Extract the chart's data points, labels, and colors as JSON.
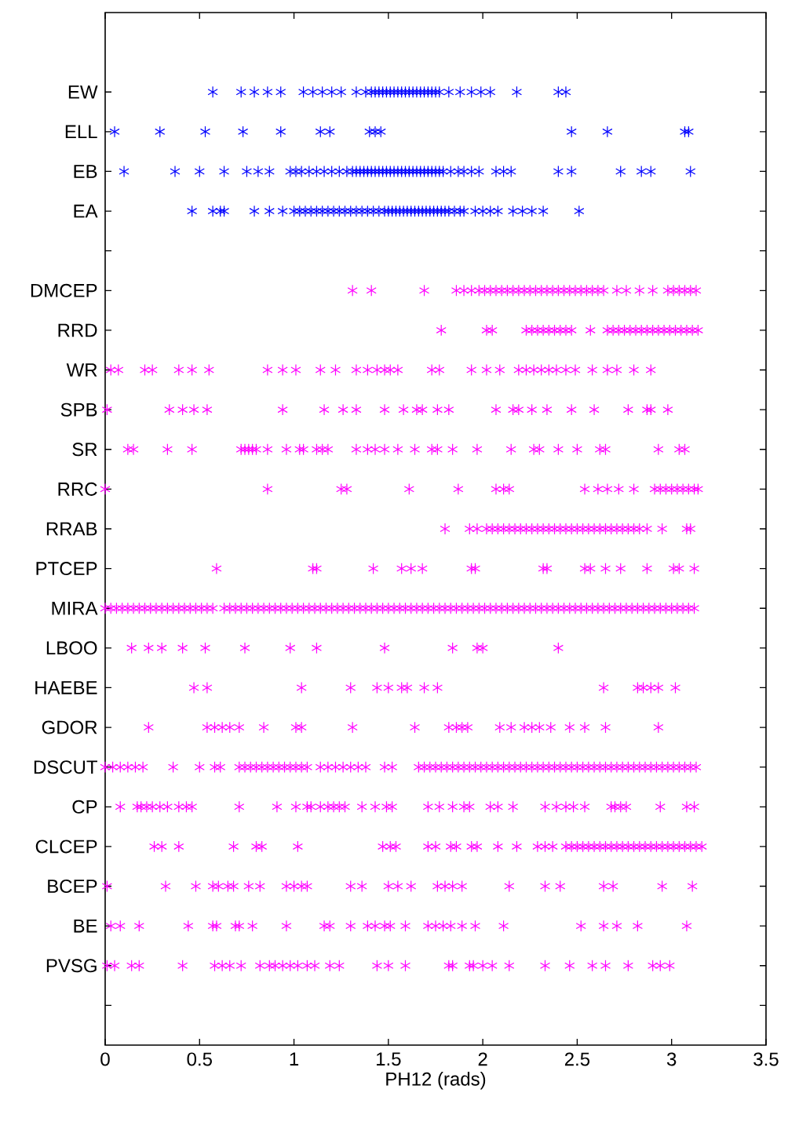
{
  "chart_data": {
    "type": "scatter",
    "orientation": "horizontal",
    "xlabel": "PH12 (rads)",
    "marker": "cross",
    "xlim": [
      0,
      3.5
    ],
    "xticks": [
      0,
      0.5,
      1,
      1.5,
      2,
      2.5,
      3,
      3.5
    ],
    "categories": [
      "EW",
      "ELL",
      "EB",
      "EA",
      null,
      "DMCEP",
      "RRD",
      "WR",
      "SPB",
      "SR",
      "RRC",
      "RRAB",
      "PTCEP",
      "MIRA",
      "LBOO",
      "HAEBE",
      "GDOR",
      "DSCUT",
      "CP",
      "CLCEP",
      "BCEP",
      "BE",
      "PVSG",
      null
    ],
    "series": [
      {
        "color": "#0000ff",
        "values": [
          0.57,
          0.72,
          0.79,
          0.86,
          0.93,
          1.05,
          1.1,
          1.15,
          1.2,
          1.25,
          1.33,
          1.38,
          1.41,
          1.43,
          1.45,
          1.47,
          1.49,
          1.51,
          1.53,
          1.55,
          1.57,
          1.59,
          1.61,
          1.63,
          1.65,
          1.67,
          1.69,
          1.71,
          1.73,
          1.75,
          1.77,
          1.82,
          1.88,
          1.94,
          1.99,
          2.04,
          2.18,
          2.4,
          2.44
        ],
        "x": [
          "EW",
          "EW",
          "EW",
          "EW",
          "EW",
          "EW",
          "EW",
          "EW",
          "EW",
          "EW",
          "EW",
          "EW",
          "EW",
          "EW",
          "EW",
          "EW",
          "EW",
          "EW",
          "EW",
          "EW",
          "EW",
          "EW",
          "EW",
          "EW",
          "EW",
          "EW",
          "EW",
          "EW",
          "EW",
          "EW",
          "EW",
          "EW",
          "EW",
          "EW",
          "EW",
          "EW",
          "EW",
          "EW",
          "EW"
        ]
      },
      {
        "color": "#0000ff",
        "values": [
          0.05,
          0.29,
          0.53,
          0.73,
          0.93,
          1.14,
          1.19,
          1.4,
          1.43,
          1.46,
          2.47,
          2.66,
          3.07,
          3.09
        ],
        "x": [
          "ELL",
          "ELL",
          "ELL",
          "ELL",
          "ELL",
          "ELL",
          "ELL",
          "ELL",
          "ELL",
          "ELL",
          "ELL",
          "ELL",
          "ELL",
          "ELL"
        ]
      },
      {
        "color": "#0000ff",
        "values": [
          0.1,
          0.37,
          0.5,
          0.63,
          0.75,
          0.81,
          0.87,
          0.98,
          1.01,
          1.04,
          1.08,
          1.12,
          1.16,
          1.2,
          1.24,
          1.28,
          1.31,
          1.33,
          1.35,
          1.37,
          1.39,
          1.41,
          1.43,
          1.45,
          1.47,
          1.49,
          1.51,
          1.53,
          1.55,
          1.57,
          1.59,
          1.61,
          1.63,
          1.65,
          1.67,
          1.69,
          1.71,
          1.73,
          1.75,
          1.77,
          1.79,
          1.83,
          1.87,
          1.9,
          1.94,
          1.98,
          2.07,
          2.11,
          2.15,
          2.4,
          2.47,
          2.73,
          2.84,
          2.89,
          3.1
        ],
        "x": [
          "EB",
          "EB",
          "EB",
          "EB",
          "EB",
          "EB",
          "EB",
          "EB",
          "EB",
          "EB",
          "EB",
          "EB",
          "EB",
          "EB",
          "EB",
          "EB",
          "EB",
          "EB",
          "EB",
          "EB",
          "EB",
          "EB",
          "EB",
          "EB",
          "EB",
          "EB",
          "EB",
          "EB",
          "EB",
          "EB",
          "EB",
          "EB",
          "EB",
          "EB",
          "EB",
          "EB",
          "EB",
          "EB",
          "EB",
          "EB",
          "EB",
          "EB",
          "EB",
          "EB",
          "EB",
          "EB",
          "EB",
          "EB",
          "EB",
          "EB",
          "EB",
          "EB",
          "EB",
          "EB",
          "EB"
        ]
      },
      {
        "color": "#0000ff",
        "values": [
          0.46,
          0.57,
          0.61,
          0.63,
          0.79,
          0.87,
          0.94,
          1.0,
          1.03,
          1.06,
          1.09,
          1.12,
          1.15,
          1.18,
          1.21,
          1.24,
          1.27,
          1.3,
          1.33,
          1.36,
          1.39,
          1.42,
          1.45,
          1.48,
          1.5,
          1.52,
          1.54,
          1.56,
          1.58,
          1.6,
          1.62,
          1.64,
          1.66,
          1.68,
          1.7,
          1.72,
          1.74,
          1.76,
          1.78,
          1.8,
          1.82,
          1.85,
          1.88,
          1.9,
          1.96,
          2.0,
          2.04,
          2.08,
          2.16,
          2.21,
          2.26,
          2.32,
          2.51
        ],
        "x": [
          "EA",
          "EA",
          "EA",
          "EA",
          "EA",
          "EA",
          "EA",
          "EA",
          "EA",
          "EA",
          "EA",
          "EA",
          "EA",
          "EA",
          "EA",
          "EA",
          "EA",
          "EA",
          "EA",
          "EA",
          "EA",
          "EA",
          "EA",
          "EA",
          "EA",
          "EA",
          "EA",
          "EA",
          "EA",
          "EA",
          "EA",
          "EA",
          "EA",
          "EA",
          "EA",
          "EA",
          "EA",
          "EA",
          "EA",
          "EA",
          "EA",
          "EA",
          "EA",
          "EA",
          "EA",
          "EA",
          "EA",
          "EA",
          "EA",
          "EA",
          "EA",
          "EA",
          "EA"
        ]
      },
      {
        "color": "#ff00ff",
        "values": [
          1.31,
          1.41,
          1.69,
          1.86,
          1.9,
          1.94,
          1.98,
          2.01,
          2.04,
          2.07,
          2.1,
          2.13,
          2.16,
          2.19,
          2.22,
          2.25,
          2.28,
          2.31,
          2.34,
          2.37,
          2.4,
          2.43,
          2.46,
          2.49,
          2.52,
          2.55,
          2.58,
          2.61,
          2.64,
          2.71,
          2.76,
          2.83,
          2.9,
          2.98,
          3.01,
          3.04,
          3.07,
          3.1,
          3.13
        ],
        "x": [
          "DMCEP",
          "DMCEP",
          "DMCEP",
          "DMCEP",
          "DMCEP",
          "DMCEP",
          "DMCEP",
          "DMCEP",
          "DMCEP",
          "DMCEP",
          "DMCEP",
          "DMCEP",
          "DMCEP",
          "DMCEP",
          "DMCEP",
          "DMCEP",
          "DMCEP",
          "DMCEP",
          "DMCEP",
          "DMCEP",
          "DMCEP",
          "DMCEP",
          "DMCEP",
          "DMCEP",
          "DMCEP",
          "DMCEP",
          "DMCEP",
          "DMCEP",
          "DMCEP",
          "DMCEP",
          "DMCEP",
          "DMCEP",
          "DMCEP",
          "DMCEP",
          "DMCEP",
          "DMCEP",
          "DMCEP",
          "DMCEP",
          "DMCEP"
        ]
      },
      {
        "color": "#ff00ff",
        "values": [
          1.78,
          2.02,
          2.05,
          2.23,
          2.26,
          2.29,
          2.32,
          2.35,
          2.38,
          2.41,
          2.44,
          2.47,
          2.57,
          2.66,
          2.69,
          2.72,
          2.75,
          2.78,
          2.81,
          2.84,
          2.87,
          2.9,
          2.93,
          2.96,
          2.99,
          3.02,
          3.05,
          3.08,
          3.11,
          3.14
        ],
        "x": [
          "RRD",
          "RRD",
          "RRD",
          "RRD",
          "RRD",
          "RRD",
          "RRD",
          "RRD",
          "RRD",
          "RRD",
          "RRD",
          "RRD",
          "RRD",
          "RRD",
          "RRD",
          "RRD",
          "RRD",
          "RRD",
          "RRD",
          "RRD",
          "RRD",
          "RRD",
          "RRD",
          "RRD",
          "RRD",
          "RRD",
          "RRD",
          "RRD",
          "RRD",
          "RRD"
        ]
      },
      {
        "color": "#ff00ff",
        "values": [
          0.03,
          0.07,
          0.21,
          0.25,
          0.39,
          0.46,
          0.55,
          0.86,
          0.94,
          1.01,
          1.14,
          1.22,
          1.33,
          1.39,
          1.44,
          1.48,
          1.51,
          1.55,
          1.73,
          1.77,
          1.94,
          2.02,
          2.09,
          2.19,
          2.23,
          2.27,
          2.31,
          2.35,
          2.39,
          2.44,
          2.49,
          2.58,
          2.66,
          2.71,
          2.8,
          2.89
        ],
        "x": [
          "WR",
          "WR",
          "WR",
          "WR",
          "WR",
          "WR",
          "WR",
          "WR",
          "WR",
          "WR",
          "WR",
          "WR",
          "WR",
          "WR",
          "WR",
          "WR",
          "WR",
          "WR",
          "WR",
          "WR",
          "WR",
          "WR",
          "WR",
          "WR",
          "WR",
          "WR",
          "WR",
          "WR",
          "WR",
          "WR",
          "WR",
          "WR",
          "WR",
          "WR",
          "WR",
          "WR"
        ]
      },
      {
        "color": "#ff00ff",
        "values": [
          0.01,
          0.34,
          0.41,
          0.47,
          0.54,
          0.94,
          1.16,
          1.26,
          1.33,
          1.48,
          1.58,
          1.65,
          1.68,
          1.76,
          1.82,
          2.07,
          2.16,
          2.19,
          2.26,
          2.34,
          2.47,
          2.59,
          2.77,
          2.87,
          2.89,
          2.98
        ],
        "x": [
          "SPB",
          "SPB",
          "SPB",
          "SPB",
          "SPB",
          "SPB",
          "SPB",
          "SPB",
          "SPB",
          "SPB",
          "SPB",
          "SPB",
          "SPB",
          "SPB",
          "SPB",
          "SPB",
          "SPB",
          "SPB",
          "SPB",
          "SPB",
          "SPB",
          "SPB",
          "SPB",
          "SPB",
          "SPB",
          "SPB"
        ]
      },
      {
        "color": "#ff00ff",
        "values": [
          0.12,
          0.15,
          0.33,
          0.46,
          0.72,
          0.74,
          0.76,
          0.78,
          0.8,
          0.86,
          0.96,
          1.03,
          1.05,
          1.12,
          1.15,
          1.18,
          1.33,
          1.39,
          1.43,
          1.48,
          1.55,
          1.64,
          1.73,
          1.76,
          1.84,
          1.97,
          2.15,
          2.27,
          2.3,
          2.4,
          2.5,
          2.62,
          2.65,
          2.93,
          3.04,
          3.07
        ],
        "x": [
          "SR",
          "SR",
          "SR",
          "SR",
          "SR",
          "SR",
          "SR",
          "SR",
          "SR",
          "SR",
          "SR",
          "SR",
          "SR",
          "SR",
          "SR",
          "SR",
          "SR",
          "SR",
          "SR",
          "SR",
          "SR",
          "SR",
          "SR",
          "SR",
          "SR",
          "SR",
          "SR",
          "SR",
          "SR",
          "SR",
          "SR",
          "SR",
          "SR",
          "SR",
          "SR",
          "SR"
        ]
      },
      {
        "color": "#ff00ff",
        "values": [
          0.0,
          0.86,
          1.25,
          1.28,
          1.61,
          1.87,
          2.07,
          2.11,
          2.14,
          2.54,
          2.61,
          2.66,
          2.72,
          2.8,
          2.91,
          2.94,
          2.97,
          3.0,
          3.03,
          3.06,
          3.09,
          3.12,
          3.14
        ],
        "x": [
          "RRC",
          "RRC",
          "RRC",
          "RRC",
          "RRC",
          "RRC",
          "RRC",
          "RRC",
          "RRC",
          "RRC",
          "RRC",
          "RRC",
          "RRC",
          "RRC",
          "RRC",
          "RRC",
          "RRC",
          "RRC",
          "RRC",
          "RRC",
          "RRC",
          "RRC",
          "RRC"
        ]
      },
      {
        "color": "#ff00ff",
        "values": [
          1.8,
          1.93,
          1.97,
          2.02,
          2.05,
          2.08,
          2.11,
          2.14,
          2.17,
          2.2,
          2.23,
          2.26,
          2.29,
          2.32,
          2.35,
          2.38,
          2.41,
          2.44,
          2.47,
          2.5,
          2.53,
          2.56,
          2.59,
          2.62,
          2.65,
          2.68,
          2.71,
          2.74,
          2.77,
          2.8,
          2.83,
          2.87,
          2.95,
          3.08,
          3.1
        ],
        "x": [
          "RRAB",
          "RRAB",
          "RRAB",
          "RRAB",
          "RRAB",
          "RRAB",
          "RRAB",
          "RRAB",
          "RRAB",
          "RRAB",
          "RRAB",
          "RRAB",
          "RRAB",
          "RRAB",
          "RRAB",
          "RRAB",
          "RRAB",
          "RRAB",
          "RRAB",
          "RRAB",
          "RRAB",
          "RRAB",
          "RRAB",
          "RRAB",
          "RRAB",
          "RRAB",
          "RRAB",
          "RRAB",
          "RRAB",
          "RRAB",
          "RRAB",
          "RRAB",
          "RRAB",
          "RRAB",
          "RRAB"
        ]
      },
      {
        "color": "#ff00ff",
        "values": [
          0.59,
          1.1,
          1.12,
          1.42,
          1.57,
          1.62,
          1.68,
          1.94,
          1.96,
          2.32,
          2.34,
          2.54,
          2.57,
          2.65,
          2.73,
          2.87,
          3.01,
          3.04,
          3.12
        ],
        "x": [
          "PTCEP",
          "PTCEP",
          "PTCEP",
          "PTCEP",
          "PTCEP",
          "PTCEP",
          "PTCEP",
          "PTCEP",
          "PTCEP",
          "PTCEP",
          "PTCEP",
          "PTCEP",
          "PTCEP",
          "PTCEP",
          "PTCEP",
          "PTCEP",
          "PTCEP",
          "PTCEP",
          "PTCEP"
        ]
      },
      {
        "color": "#ff00ff",
        "values": [
          0.0,
          0.03,
          0.06,
          0.09,
          0.12,
          0.15,
          0.18,
          0.21,
          0.24,
          0.27,
          0.3,
          0.33,
          0.36,
          0.39,
          0.42,
          0.45,
          0.48,
          0.51,
          0.54,
          0.57,
          0.63,
          0.66,
          0.69,
          0.72,
          0.75,
          0.78,
          0.81,
          0.84,
          0.87,
          0.9,
          0.93,
          0.96,
          0.99,
          1.02,
          1.05,
          1.08,
          1.11,
          1.14,
          1.17,
          1.2,
          1.23,
          1.26,
          1.29,
          1.32,
          1.35,
          1.38,
          1.41,
          1.44,
          1.47,
          1.5,
          1.53,
          1.56,
          1.59,
          1.62,
          1.65,
          1.68,
          1.71,
          1.74,
          1.77,
          1.8,
          1.83,
          1.86,
          1.89,
          1.92,
          1.95,
          1.98,
          2.01,
          2.04,
          2.07,
          2.1,
          2.13,
          2.16,
          2.19,
          2.22,
          2.25,
          2.28,
          2.31,
          2.34,
          2.37,
          2.4,
          2.43,
          2.46,
          2.49,
          2.52,
          2.55,
          2.58,
          2.61,
          2.64,
          2.67,
          2.7,
          2.73,
          2.76,
          2.79,
          2.82,
          2.85,
          2.88,
          2.91,
          2.94,
          2.97,
          3.0,
          3.03,
          3.06,
          3.09,
          3.12
        ],
        "x": [
          "MIRA",
          "MIRA",
          "MIRA",
          "MIRA",
          "MIRA",
          "MIRA",
          "MIRA",
          "MIRA",
          "MIRA",
          "MIRA",
          "MIRA",
          "MIRA",
          "MIRA",
          "MIRA",
          "MIRA",
          "MIRA",
          "MIRA",
          "MIRA",
          "MIRA",
          "MIRA",
          "MIRA",
          "MIRA",
          "MIRA",
          "MIRA",
          "MIRA",
          "MIRA",
          "MIRA",
          "MIRA",
          "MIRA",
          "MIRA",
          "MIRA",
          "MIRA",
          "MIRA",
          "MIRA",
          "MIRA",
          "MIRA",
          "MIRA",
          "MIRA",
          "MIRA",
          "MIRA",
          "MIRA",
          "MIRA",
          "MIRA",
          "MIRA",
          "MIRA",
          "MIRA",
          "MIRA",
          "MIRA",
          "MIRA",
          "MIRA",
          "MIRA",
          "MIRA",
          "MIRA",
          "MIRA",
          "MIRA",
          "MIRA",
          "MIRA",
          "MIRA",
          "MIRA",
          "MIRA",
          "MIRA",
          "MIRA",
          "MIRA",
          "MIRA",
          "MIRA",
          "MIRA",
          "MIRA",
          "MIRA",
          "MIRA",
          "MIRA",
          "MIRA",
          "MIRA",
          "MIRA",
          "MIRA",
          "MIRA",
          "MIRA",
          "MIRA",
          "MIRA",
          "MIRA",
          "MIRA",
          "MIRA",
          "MIRA",
          "MIRA",
          "MIRA",
          "MIRA",
          "MIRA",
          "MIRA",
          "MIRA",
          "MIRA",
          "MIRA",
          "MIRA",
          "MIRA",
          "MIRA",
          "MIRA",
          "MIRA",
          "MIRA",
          "MIRA",
          "MIRA",
          "MIRA",
          "MIRA",
          "MIRA",
          "MIRA",
          "MIRA",
          "MIRA"
        ]
      },
      {
        "color": "#ff00ff",
        "values": [
          0.14,
          0.23,
          0.3,
          0.41,
          0.53,
          0.74,
          0.98,
          1.12,
          1.48,
          1.84,
          1.97,
          2.0,
          2.4
        ],
        "x": [
          "LBOO",
          "LBOO",
          "LBOO",
          "LBOO",
          "LBOO",
          "LBOO",
          "LBOO",
          "LBOO",
          "LBOO",
          "LBOO",
          "LBOO",
          "LBOO",
          "LBOO"
        ]
      },
      {
        "color": "#ff00ff",
        "values": [
          0.47,
          0.54,
          1.04,
          1.3,
          1.44,
          1.5,
          1.57,
          1.6,
          1.69,
          1.76,
          2.64,
          2.82,
          2.85,
          2.89,
          2.93,
          3.02
        ],
        "x": [
          "HAEBE",
          "HAEBE",
          "HAEBE",
          "HAEBE",
          "HAEBE",
          "HAEBE",
          "HAEBE",
          "HAEBE",
          "HAEBE",
          "HAEBE",
          "HAEBE",
          "HAEBE",
          "HAEBE",
          "HAEBE",
          "HAEBE",
          "HAEBE"
        ]
      },
      {
        "color": "#ff00ff",
        "values": [
          0.23,
          0.54,
          0.58,
          0.62,
          0.66,
          0.71,
          0.84,
          1.01,
          1.04,
          1.31,
          1.64,
          1.82,
          1.86,
          1.89,
          1.92,
          2.09,
          2.15,
          2.22,
          2.26,
          2.3,
          2.36,
          2.46,
          2.54,
          2.65,
          2.93
        ],
        "x": [
          "GDOR",
          "GDOR",
          "GDOR",
          "GDOR",
          "GDOR",
          "GDOR",
          "GDOR",
          "GDOR",
          "GDOR",
          "GDOR",
          "GDOR",
          "GDOR",
          "GDOR",
          "GDOR",
          "GDOR",
          "GDOR",
          "GDOR",
          "GDOR",
          "GDOR",
          "GDOR",
          "GDOR",
          "GDOR",
          "GDOR",
          "GDOR",
          "GDOR"
        ]
      },
      {
        "color": "#ff00ff",
        "values": [
          0.0,
          0.04,
          0.08,
          0.12,
          0.16,
          0.2,
          0.36,
          0.5,
          0.58,
          0.61,
          0.71,
          0.74,
          0.77,
          0.8,
          0.83,
          0.86,
          0.89,
          0.92,
          0.95,
          0.98,
          1.01,
          1.04,
          1.07,
          1.14,
          1.18,
          1.22,
          1.26,
          1.3,
          1.34,
          1.38,
          1.48,
          1.52,
          1.66,
          1.69,
          1.72,
          1.75,
          1.78,
          1.81,
          1.84,
          1.87,
          1.9,
          1.93,
          1.96,
          1.99,
          2.02,
          2.05,
          2.08,
          2.11,
          2.14,
          2.17,
          2.2,
          2.23,
          2.26,
          2.29,
          2.32,
          2.35,
          2.38,
          2.41,
          2.44,
          2.47,
          2.5,
          2.53,
          2.56,
          2.59,
          2.62,
          2.65,
          2.68,
          2.71,
          2.74,
          2.77,
          2.8,
          2.83,
          2.86,
          2.89,
          2.92,
          2.95,
          2.98,
          3.01,
          3.04,
          3.07,
          3.1,
          3.13
        ],
        "x": [
          "DSCUT",
          "DSCUT",
          "DSCUT",
          "DSCUT",
          "DSCUT",
          "DSCUT",
          "DSCUT",
          "DSCUT",
          "DSCUT",
          "DSCUT",
          "DSCUT",
          "DSCUT",
          "DSCUT",
          "DSCUT",
          "DSCUT",
          "DSCUT",
          "DSCUT",
          "DSCUT",
          "DSCUT",
          "DSCUT",
          "DSCUT",
          "DSCUT",
          "DSCUT",
          "DSCUT",
          "DSCUT",
          "DSCUT",
          "DSCUT",
          "DSCUT",
          "DSCUT",
          "DSCUT",
          "DSCUT",
          "DSCUT",
          "DSCUT",
          "DSCUT",
          "DSCUT",
          "DSCUT",
          "DSCUT",
          "DSCUT",
          "DSCUT",
          "DSCUT",
          "DSCUT",
          "DSCUT",
          "DSCUT",
          "DSCUT",
          "DSCUT",
          "DSCUT",
          "DSCUT",
          "DSCUT",
          "DSCUT",
          "DSCUT",
          "DSCUT",
          "DSCUT",
          "DSCUT",
          "DSCUT",
          "DSCUT",
          "DSCUT",
          "DSCUT",
          "DSCUT",
          "DSCUT",
          "DSCUT",
          "DSCUT",
          "DSCUT",
          "DSCUT",
          "DSCUT",
          "DSCUT",
          "DSCUT",
          "DSCUT",
          "DSCUT",
          "DSCUT",
          "DSCUT",
          "DSCUT",
          "DSCUT",
          "DSCUT",
          "DSCUT",
          "DSCUT",
          "DSCUT",
          "DSCUT",
          "DSCUT",
          "DSCUT",
          "DSCUT",
          "DSCUT",
          "DSCUT"
        ]
      },
      {
        "color": "#ff00ff",
        "values": [
          0.08,
          0.17,
          0.19,
          0.22,
          0.25,
          0.29,
          0.33,
          0.39,
          0.43,
          0.46,
          0.71,
          0.91,
          1.01,
          1.07,
          1.09,
          1.14,
          1.18,
          1.21,
          1.24,
          1.27,
          1.36,
          1.43,
          1.49,
          1.52,
          1.71,
          1.77,
          1.84,
          1.9,
          1.93,
          2.04,
          2.08,
          2.16,
          2.33,
          2.39,
          2.44,
          2.48,
          2.54,
          2.68,
          2.7,
          2.73,
          2.76,
          2.94,
          3.08,
          3.12
        ],
        "x": [
          "CP",
          "CP",
          "CP",
          "CP",
          "CP",
          "CP",
          "CP",
          "CP",
          "CP",
          "CP",
          "CP",
          "CP",
          "CP",
          "CP",
          "CP",
          "CP",
          "CP",
          "CP",
          "CP",
          "CP",
          "CP",
          "CP",
          "CP",
          "CP",
          "CP",
          "CP",
          "CP",
          "CP",
          "CP",
          "CP",
          "CP",
          "CP",
          "CP",
          "CP",
          "CP",
          "CP",
          "CP",
          "CP",
          "CP",
          "CP",
          "CP",
          "CP",
          "CP",
          "CP"
        ]
      },
      {
        "color": "#ff00ff",
        "values": [
          0.26,
          0.3,
          0.39,
          0.68,
          0.8,
          0.83,
          1.02,
          1.47,
          1.51,
          1.54,
          1.71,
          1.75,
          1.83,
          1.86,
          1.94,
          1.97,
          2.08,
          2.18,
          2.29,
          2.33,
          2.37,
          2.44,
          2.47,
          2.5,
          2.53,
          2.56,
          2.59,
          2.62,
          2.65,
          2.68,
          2.71,
          2.74,
          2.77,
          2.8,
          2.83,
          2.86,
          2.89,
          2.92,
          2.95,
          2.98,
          3.01,
          3.04,
          3.07,
          3.1,
          3.13,
          3.16
        ],
        "x": [
          "CLCEP",
          "CLCEP",
          "CLCEP",
          "CLCEP",
          "CLCEP",
          "CLCEP",
          "CLCEP",
          "CLCEP",
          "CLCEP",
          "CLCEP",
          "CLCEP",
          "CLCEP",
          "CLCEP",
          "CLCEP",
          "CLCEP",
          "CLCEP",
          "CLCEP",
          "CLCEP",
          "CLCEP",
          "CLCEP",
          "CLCEP",
          "CLCEP",
          "CLCEP",
          "CLCEP",
          "CLCEP",
          "CLCEP",
          "CLCEP",
          "CLCEP",
          "CLCEP",
          "CLCEP",
          "CLCEP",
          "CLCEP",
          "CLCEP",
          "CLCEP",
          "CLCEP",
          "CLCEP",
          "CLCEP",
          "CLCEP",
          "CLCEP",
          "CLCEP",
          "CLCEP",
          "CLCEP",
          "CLCEP",
          "CLCEP",
          "CLCEP",
          "CLCEP"
        ]
      },
      {
        "color": "#ff00ff",
        "values": [
          0.01,
          0.32,
          0.48,
          0.57,
          0.6,
          0.65,
          0.68,
          0.76,
          0.82,
          0.96,
          1.0,
          1.04,
          1.07,
          1.3,
          1.36,
          1.5,
          1.55,
          1.62,
          1.76,
          1.8,
          1.84,
          1.89,
          2.14,
          2.33,
          2.41,
          2.64,
          2.69,
          2.95,
          3.11
        ],
        "x": [
          "BCEP",
          "BCEP",
          "BCEP",
          "BCEP",
          "BCEP",
          "BCEP",
          "BCEP",
          "BCEP",
          "BCEP",
          "BCEP",
          "BCEP",
          "BCEP",
          "BCEP",
          "BCEP",
          "BCEP",
          "BCEP",
          "BCEP",
          "BCEP",
          "BCEP",
          "BCEP",
          "BCEP",
          "BCEP",
          "BCEP",
          "BCEP",
          "BCEP",
          "BCEP",
          "BCEP",
          "BCEP",
          "BCEP"
        ]
      },
      {
        "color": "#ff00ff",
        "values": [
          0.03,
          0.08,
          0.18,
          0.44,
          0.57,
          0.59,
          0.69,
          0.71,
          0.78,
          0.96,
          1.16,
          1.19,
          1.3,
          1.39,
          1.43,
          1.48,
          1.51,
          1.59,
          1.71,
          1.75,
          1.79,
          1.83,
          1.89,
          1.96,
          2.11,
          2.52,
          2.64,
          2.71,
          2.82,
          3.08
        ],
        "x": [
          "BE",
          "BE",
          "BE",
          "BE",
          "BE",
          "BE",
          "BE",
          "BE",
          "BE",
          "BE",
          "BE",
          "BE",
          "BE",
          "BE",
          "BE",
          "BE",
          "BE",
          "BE",
          "BE",
          "BE",
          "BE",
          "BE",
          "BE",
          "BE",
          "BE",
          "BE",
          "BE",
          "BE",
          "BE",
          "BE"
        ]
      },
      {
        "color": "#ff00ff",
        "values": [
          0.01,
          0.05,
          0.14,
          0.18,
          0.41,
          0.58,
          0.62,
          0.66,
          0.72,
          0.82,
          0.87,
          0.9,
          0.94,
          0.98,
          1.02,
          1.07,
          1.11,
          1.19,
          1.24,
          1.44,
          1.5,
          1.59,
          1.82,
          1.84,
          1.93,
          1.95,
          2.0,
          2.05,
          2.14,
          2.33,
          2.46,
          2.58,
          2.65,
          2.77,
          2.9,
          2.94,
          2.99
        ],
        "x": [
          "PVSG",
          "PVSG",
          "PVSG",
          "PVSG",
          "PVSG",
          "PVSG",
          "PVSG",
          "PVSG",
          "PVSG",
          "PVSG",
          "PVSG",
          "PVSG",
          "PVSG",
          "PVSG",
          "PVSG",
          "PVSG",
          "PVSG",
          "PVSG",
          "PVSG",
          "PVSG",
          "PVSG",
          "PVSG",
          "PVSG",
          "PVSG",
          "PVSG",
          "PVSG",
          "PVSG",
          "PVSG",
          "PVSG",
          "PVSG",
          "PVSG",
          "PVSG",
          "PVSG",
          "PVSG",
          "PVSG",
          "PVSG",
          "PVSG"
        ]
      }
    ]
  }
}
